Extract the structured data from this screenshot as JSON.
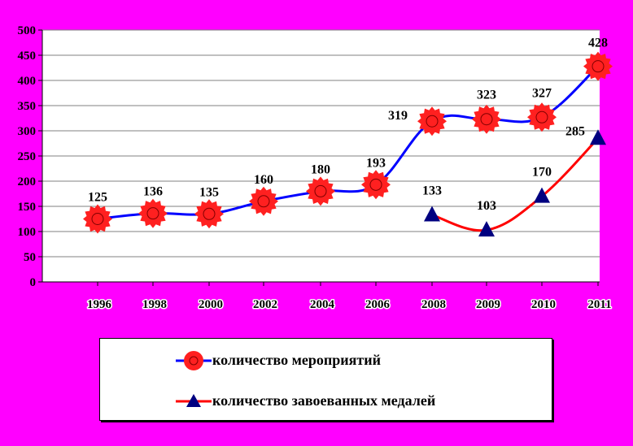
{
  "chart_data": {
    "type": "line",
    "categories": [
      "1996",
      "1998",
      "2000",
      "2002",
      "2004",
      "2006",
      "2008",
      "2009",
      "2010",
      "2011"
    ],
    "series": [
      {
        "name": "количество мероприятий",
        "color": "#0000ff",
        "marker_color": "#ff2020",
        "marker": "circle",
        "values": [
          125,
          136,
          135,
          160,
          180,
          193,
          319,
          323,
          327,
          428
        ],
        "labels": [
          "125",
          "136",
          "135",
          "160",
          "180",
          "193",
          "319",
          "323",
          "327",
          "428"
        ]
      },
      {
        "name": "количество завоеванных медалей",
        "color": "#ff0000",
        "marker_color": "#000080",
        "marker": "triangle",
        "values": [
          null,
          null,
          null,
          null,
          null,
          null,
          133,
          103,
          170,
          285
        ],
        "labels": [
          null,
          null,
          null,
          null,
          null,
          null,
          "133",
          "103",
          "170",
          "285"
        ]
      }
    ],
    "y_ticks": [
      "0",
      "50",
      "100",
      "150",
      "200",
      "250",
      "300",
      "350",
      "400",
      "450",
      "500"
    ],
    "ylim": [
      0,
      500
    ],
    "grid": true,
    "legend_position": "bottom",
    "plot_background": "#ffffff",
    "page_background": "#ff00ff"
  }
}
